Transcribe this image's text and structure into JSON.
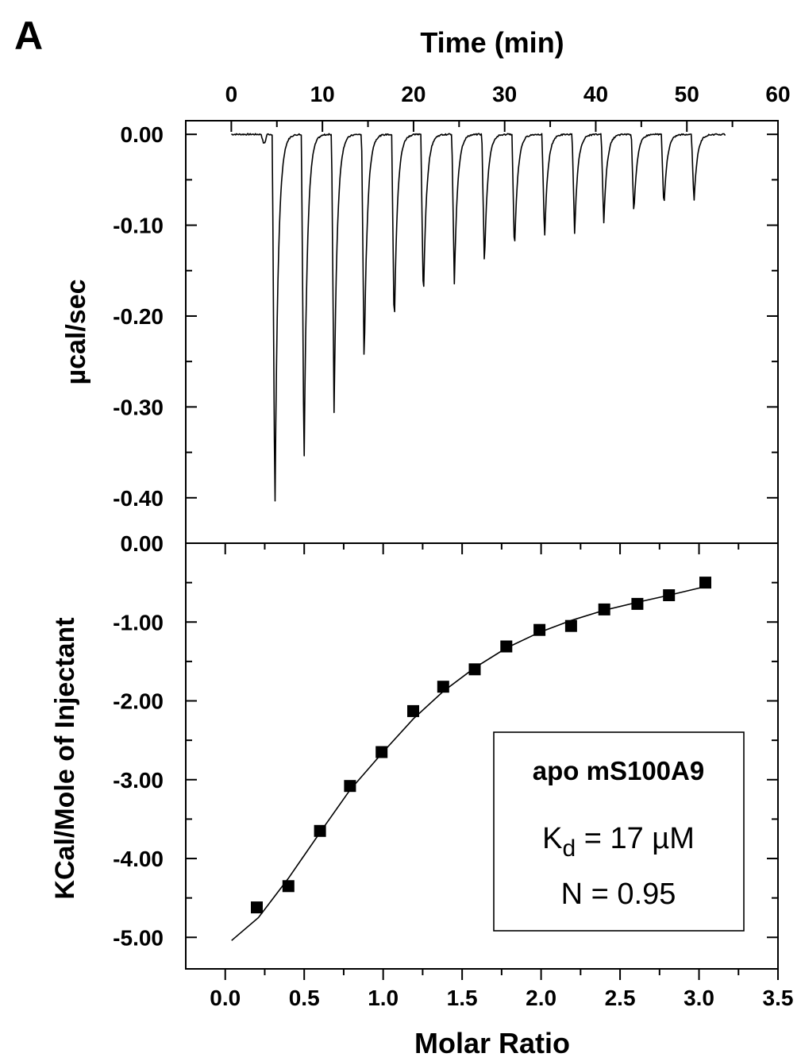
{
  "panel_label": "A",
  "chart_data": [
    {
      "type": "line",
      "panel": "top",
      "xlabel": "Time (min)",
      "ylabel": "µcal/sec",
      "xlim": [
        -5,
        60
      ],
      "ylim": [
        -0.45,
        0.015
      ],
      "x_ticks": [
        0,
        10,
        20,
        30,
        40,
        50,
        60
      ],
      "x_tick_labels": [
        "0",
        "10",
        "20",
        "30",
        "40",
        "50",
        "60"
      ],
      "y_ticks": [
        0.0,
        -0.1,
        -0.2,
        -0.3,
        -0.4
      ],
      "y_tick_labels": [
        "0.00",
        "-0.10",
        "-0.20",
        "-0.30",
        "-0.40"
      ],
      "trace_x_range": [
        0,
        54.3
      ],
      "baseline": 0.0,
      "injections": {
        "times": [
          4.5,
          7.7,
          11.0,
          14.3,
          17.6,
          20.8,
          24.2,
          27.5,
          30.8,
          34.1,
          37.4,
          40.6,
          43.9,
          47.2,
          50.5
        ],
        "peak_values": [
          -0.427,
          -0.375,
          -0.306,
          -0.26,
          -0.218,
          -0.187,
          -0.165,
          -0.147,
          -0.131,
          -0.118,
          -0.109,
          -0.098,
          -0.089,
          -0.082,
          -0.076
        ]
      }
    },
    {
      "type": "scatter",
      "panel": "bottom",
      "xlabel": "Molar Ratio",
      "ylabel": "KCal/Mole of Injectant",
      "xlim": [
        -0.25,
        3.5
      ],
      "ylim": [
        -5.4,
        0.0
      ],
      "x_ticks": [
        0.0,
        0.5,
        1.0,
        1.5,
        2.0,
        2.5,
        3.0,
        3.5
      ],
      "x_tick_labels": [
        "0.0",
        "0.5",
        "1.0",
        "1.5",
        "2.0",
        "2.5",
        "3.0",
        "3.5"
      ],
      "y_ticks": [
        0.0,
        -1.0,
        -2.0,
        -3.0,
        -4.0,
        -5.0
      ],
      "y_tick_labels": [
        "0.00",
        "-1.00",
        "-2.00",
        "-3.00",
        "-4.00",
        "-5.00"
      ],
      "series": [
        {
          "marker": "square",
          "x": [
            0.2,
            0.4,
            0.6,
            0.79,
            0.99,
            1.19,
            1.38,
            1.58,
            1.78,
            1.99,
            2.19,
            2.4,
            2.61,
            2.81,
            3.04
          ],
          "y": [
            -4.62,
            -4.35,
            -3.65,
            -3.08,
            -2.65,
            -2.13,
            -1.82,
            -1.6,
            -1.31,
            -1.1,
            -1.05,
            -0.84,
            -0.77,
            -0.66,
            -0.5
          ]
        },
        {
          "marker": "none",
          "x": [
            0.04,
            0.21,
            0.4,
            0.6,
            0.79,
            0.99,
            1.19,
            1.38,
            1.58,
            1.78,
            1.99,
            2.19,
            2.4,
            2.61,
            2.81,
            3.04
          ],
          "y": [
            -5.04,
            -4.75,
            -4.25,
            -3.67,
            -3.13,
            -2.67,
            -2.23,
            -1.88,
            -1.58,
            -1.33,
            -1.13,
            -0.98,
            -0.85,
            -0.75,
            -0.66,
            -0.55
          ]
        }
      ],
      "annotation": {
        "title": "apo mS100A9",
        "kd_label": "K",
        "kd_subscript": "d",
        "kd_value": " = 17 µM",
        "n_text": "N = 0.95"
      }
    }
  ]
}
